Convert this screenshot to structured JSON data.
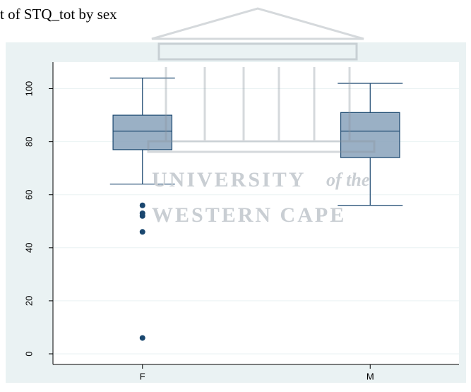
{
  "chart_data": {
    "type": "box",
    "title": "t of STQ_tot by sex",
    "categories": [
      "F",
      "M"
    ],
    "boxes": [
      {
        "whisker_low": 64,
        "q1": 77,
        "median": 84,
        "q3": 90,
        "whisker_high": 104,
        "outliers": [
          56,
          53,
          52,
          46,
          6
        ]
      },
      {
        "whisker_low": 56,
        "q1": 74,
        "median": 84,
        "q3": 91,
        "whisker_high": 102,
        "outliers": []
      }
    ],
    "color": "#8fa7bf",
    "edge_color": "#1a476f",
    "ylim": [
      -4,
      110
    ],
    "yticks": [
      0,
      20,
      40,
      60,
      80,
      100
    ],
    "grid": true,
    "watermark": [
      "UNIVERSITY",
      "of the",
      "WESTERN CAPE"
    ]
  }
}
